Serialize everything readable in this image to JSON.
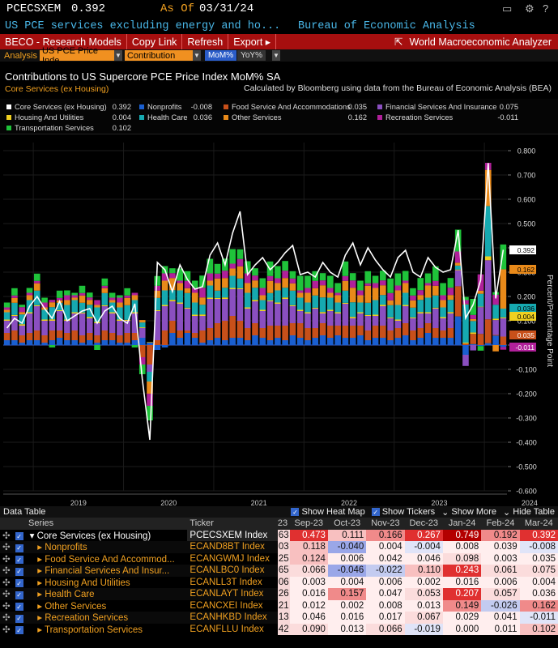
{
  "header": {
    "ticker": "PCECSXEM",
    "price": "0.392",
    "as_of_label": "As Of",
    "as_of_date": "03/31/24",
    "description": "US PCE services excluding energy and ho...",
    "source": "Bureau of Economic Analysis"
  },
  "toolbar": {
    "beco": "BECO - Research Models",
    "copy": "Copy Link",
    "refresh": "Refresh",
    "export": "Export ▸",
    "wma": "World Macroeconomic Analyzer"
  },
  "analysis": {
    "label": "Analysis",
    "security": "US PCE Price Inde",
    "mode": "Contribution",
    "mom": "MoM%",
    "yoy": "YoY%"
  },
  "chart": {
    "title": "Contributions to US Supercore PCE Price Index MoM% SA",
    "subtitle": "Core Services (ex Housing)",
    "note": "Calculated by Bloomberg using data from the Bureau of Economic Analysis (BEA)",
    "y_axis_label": "Percent/Percentage Point"
  },
  "legend": [
    {
      "name": "Core Services (ex Housing)",
      "value": "0.392",
      "color": "#ffffff"
    },
    {
      "name": "Nonprofits",
      "value": "-0.008",
      "color": "#1a5fd0"
    },
    {
      "name": "Food Service And Accommodations",
      "value": "0.035",
      "color": "#c8501a"
    },
    {
      "name": "Financial Services And Insurance",
      "value": "0.075",
      "color": "#8a4fc0"
    },
    {
      "name": "Housing And Utilities",
      "value": "0.004",
      "color": "#f0d020"
    },
    {
      "name": "Health Care",
      "value": "0.036",
      "color": "#16a9b0"
    },
    {
      "name": "Other Services",
      "value": "0.162",
      "color": "#e98a1a"
    },
    {
      "name": "Recreation Services",
      "value": "-0.011",
      "color": "#b0209a"
    },
    {
      "name": "Transportation Services",
      "value": "0.102",
      "color": "#1fc33a"
    }
  ],
  "chart_data": {
    "type": "bar",
    "stacked": true,
    "x_tick_labels": [
      "2019",
      "2020",
      "2021",
      "2022",
      "2023",
      "2024"
    ],
    "ylim": [
      -0.6,
      0.8
    ],
    "y_ticks": [
      "0.800",
      "0.700",
      "0.600",
      "0.500",
      "0.400",
      "0.300",
      "0.200",
      "0.100",
      "0.000",
      "-0.100",
      "-0.200",
      "-0.300",
      "-0.400",
      "-0.500",
      "-0.600"
    ],
    "y_tick_values": [
      0.8,
      0.7,
      0.6,
      0.5,
      0.4,
      0.3,
      0.2,
      0.1,
      0,
      -0.1,
      -0.2,
      -0.3,
      -0.4,
      -0.5,
      -0.6
    ],
    "period_start": "2018-09",
    "period_end": "2024-03",
    "series": [
      {
        "name": "Nonprofits",
        "color": "#1a5fd0",
        "values": [
          0.02,
          0.02,
          0.01,
          0.02,
          0.02,
          0.01,
          0.02,
          0.03,
          0.02,
          0.02,
          0.01,
          0.02,
          0.01,
          0.02,
          0.02,
          0.01,
          0.01,
          0.02,
          0.03,
          0.01,
          -0.02,
          -0.01,
          0.05,
          0.03,
          0.05,
          0.03,
          0.01,
          0.02,
          0.03,
          0.02,
          0.03,
          0.03,
          0.02,
          0.04,
          0.03,
          0.02,
          0.03,
          0.02,
          0.04,
          0.03,
          0.02,
          0.03,
          0.04,
          0.03,
          0.04,
          0.03,
          0.03,
          0.04,
          0.02,
          0.03,
          0.03,
          0.02,
          0.03,
          0.04,
          0.02,
          0.03,
          0.05,
          0.03,
          0.03,
          0.03,
          0.118,
          -0.04,
          0.004,
          -0.004,
          0.008,
          0.039,
          -0.008
        ]
      },
      {
        "name": "Food Service And Accommodations",
        "color": "#c8501a",
        "values": [
          0.03,
          0.04,
          0.03,
          0.03,
          0.04,
          0.03,
          0.04,
          0.03,
          0.03,
          0.04,
          0.03,
          0.03,
          0.03,
          0.04,
          0.03,
          0.03,
          0.04,
          0.03,
          -0.05,
          -0.08,
          0.02,
          0.06,
          0.05,
          0.03,
          0.01,
          0.02,
          0.05,
          0.05,
          0.06,
          0.08,
          0.09,
          0.07,
          0.05,
          0.05,
          0.04,
          0.06,
          0.05,
          0.06,
          0.05,
          0.06,
          0.05,
          0.04,
          0.05,
          0.05,
          0.04,
          0.05,
          0.05,
          0.04,
          0.04,
          0.05,
          0.05,
          0.04,
          0.04,
          0.05,
          0.04,
          0.04,
          0.04,
          0.04,
          0.03,
          0.04,
          0.124,
          0.006,
          0.042,
          0.046,
          0.098,
          0.003,
          0.035
        ]
      },
      {
        "name": "Financial Services And Insurance",
        "color": "#8a4fc0",
        "values": [
          0.05,
          0.06,
          0.04,
          0.08,
          0.1,
          0.06,
          0.04,
          0.08,
          0.05,
          0.07,
          0.09,
          0.06,
          0.05,
          0.1,
          0.08,
          0.06,
          0.05,
          0.08,
          0.04,
          -0.03,
          0.12,
          0.1,
          0.08,
          0.11,
          0.09,
          0.07,
          0.06,
          0.12,
          0.1,
          0.09,
          0.11,
          0.13,
          0.08,
          0.09,
          0.07,
          0.1,
          0.09,
          0.11,
          0.07,
          0.05,
          0.06,
          0.08,
          0.04,
          0.06,
          0.05,
          0.09,
          0.03,
          0.05,
          0.06,
          0.04,
          0.08,
          0.05,
          0.03,
          0.07,
          0.05,
          0.06,
          0.04,
          0.08,
          0.05,
          0.06,
          0.066,
          -0.046,
          -0.022,
          0.11,
          0.243,
          0.061,
          0.075
        ]
      },
      {
        "name": "Housing And Utilities",
        "color": "#f0d020",
        "values": [
          0.005,
          0.004,
          0.006,
          0.005,
          0.004,
          0.005,
          0.006,
          0.004,
          0.005,
          0.005,
          0.004,
          0.006,
          0.005,
          0.004,
          0.005,
          0.005,
          0.004,
          0.005,
          0.003,
          0.002,
          0.004,
          0.005,
          0.006,
          0.005,
          0.004,
          0.005,
          0.006,
          0.005,
          0.004,
          0.006,
          0.005,
          0.004,
          0.005,
          0.006,
          0.005,
          0.004,
          0.005,
          0.006,
          0.004,
          0.005,
          0.005,
          0.004,
          0.006,
          0.005,
          0.005,
          0.004,
          0.006,
          0.005,
          0.004,
          0.005,
          0.006,
          0.004,
          0.005,
          0.005,
          0.004,
          0.006,
          0.005,
          0.004,
          0.005,
          0.006,
          0.003,
          0.004,
          0.006,
          0.002,
          0.016,
          0.006,
          0.004
        ]
      },
      {
        "name": "Health Care",
        "color": "#16a9b0",
        "values": [
          0.03,
          0.05,
          0.04,
          0.05,
          0.06,
          0.04,
          0.05,
          0.03,
          0.06,
          0.05,
          0.04,
          0.05,
          0.06,
          0.05,
          0.04,
          0.05,
          0.06,
          0.05,
          0.02,
          -0.04,
          0.05,
          0.06,
          0.04,
          0.05,
          0.06,
          0.05,
          0.04,
          0.05,
          0.03,
          0.04,
          0.05,
          0.04,
          0.06,
          0.05,
          0.04,
          0.03,
          0.05,
          0.04,
          0.06,
          0.05,
          0.04,
          0.05,
          0.06,
          0.05,
          0.04,
          0.05,
          0.06,
          0.04,
          0.05,
          0.06,
          0.04,
          0.05,
          0.06,
          0.05,
          0.04,
          0.05,
          0.06,
          0.05,
          0.04,
          0.05,
          0.016,
          0.157,
          0.047,
          0.053,
          0.207,
          0.057,
          0.036
        ]
      },
      {
        "name": "Other Services",
        "color": "#e98a1a",
        "values": [
          0.01,
          0.02,
          0.01,
          0.02,
          0.03,
          0.01,
          0.02,
          0.01,
          0.02,
          0.01,
          0.03,
          0.02,
          0.01,
          0.02,
          0.01,
          0.02,
          0.03,
          0.02,
          0.01,
          -0.05,
          0.03,
          0.04,
          0.05,
          0.03,
          0.02,
          0.04,
          0.03,
          0.02,
          0.05,
          0.04,
          0.03,
          0.05,
          0.04,
          0.03,
          0.02,
          0.05,
          0.03,
          0.04,
          0.03,
          0.02,
          0.04,
          0.03,
          0.05,
          0.02,
          0.03,
          0.04,
          0.06,
          0.03,
          0.07,
          0.05,
          0.04,
          0.02,
          0.06,
          0.04,
          0.03,
          0.02,
          0.05,
          0.04,
          0.03,
          0.02,
          0.012,
          0.002,
          0.008,
          0.013,
          0.149,
          -0.026,
          0.162
        ]
      },
      {
        "name": "Recreation Services",
        "color": "#b0209a",
        "values": [
          0.01,
          0.01,
          0.02,
          0.01,
          0.01,
          0.02,
          0.01,
          0.01,
          0.02,
          0.01,
          0.01,
          0.01,
          0.02,
          0.01,
          0.01,
          0.02,
          0.01,
          0.01,
          -0.03,
          -0.05,
          0.02,
          0.03,
          0.02,
          0.01,
          0.03,
          0.02,
          0.04,
          0.03,
          0.02,
          0.03,
          0.02,
          0.03,
          0.04,
          0.02,
          0.03,
          0.02,
          0.02,
          0.03,
          0.02,
          0.01,
          0.02,
          0.03,
          0.02,
          0.02,
          0.01,
          0.02,
          0.03,
          0.02,
          0.01,
          0.02,
          0.02,
          0.03,
          0.02,
          0.01,
          0.02,
          0.02,
          0.01,
          0.02,
          0.02,
          0.03,
          0.046,
          0.016,
          0.017,
          0.067,
          0.029,
          0.041,
          -0.011
        ]
      },
      {
        "name": "Transportation Services",
        "color": "#1fc33a",
        "values": [
          0.02,
          0.03,
          0.01,
          0.02,
          0.03,
          0.02,
          -0.01,
          0.03,
          0.02,
          0.01,
          0.03,
          0.02,
          -0.02,
          0.03,
          0.02,
          0.01,
          0.03,
          -0.01,
          -0.04,
          -0.06,
          0.04,
          0.03,
          0.02,
          0.05,
          0.04,
          0.03,
          0.05,
          0.06,
          0.04,
          0.05,
          0.06,
          0.04,
          0.05,
          0.03,
          0.04,
          0.06,
          0.05,
          0.04,
          0.03,
          0.06,
          0.05,
          0.04,
          0.03,
          0.05,
          0.04,
          0.06,
          0.03,
          0.04,
          0.05,
          0.03,
          0.04,
          0.06,
          0.05,
          0.04,
          0.03,
          0.05,
          0.04,
          0.06,
          0.05,
          0.04,
          0.09,
          0.013,
          0.066,
          -0.019,
          0.0,
          0.011,
          0.102
        ]
      }
    ],
    "total": {
      "name": "Core Services (ex Housing)",
      "values": [
        0.07,
        0.11,
        0.09,
        0.16,
        0.2,
        0.15,
        0.11,
        0.18,
        0.1,
        0.12,
        0.14,
        0.15,
        0.09,
        0.14,
        0.16,
        0.11,
        0.09,
        0.17,
        -0.14,
        -0.39,
        0.34,
        0.31,
        0.22,
        0.33,
        0.27,
        0.23,
        0.24,
        0.37,
        0.42,
        0.33,
        0.46,
        0.55,
        0.29,
        0.33,
        0.36,
        0.31,
        0.34,
        0.38,
        0.41,
        0.29,
        0.3,
        0.28,
        0.34,
        0.3,
        0.28,
        0.37,
        0.42,
        0.33,
        0.4,
        0.35,
        0.31,
        0.28,
        0.36,
        0.39,
        0.3,
        0.28,
        0.36,
        0.32,
        0.3,
        0.31,
        0.473,
        0.111,
        0.166,
        0.267,
        0.749,
        0.192,
        0.392
      ]
    }
  },
  "data_table": {
    "title": "Data Table",
    "opts": [
      "Show Heat Map",
      "Show Tickers",
      "Show More",
      "Hide Table"
    ],
    "columns": [
      "Series",
      "Ticker",
      "23",
      "Sep-23",
      "Oct-23",
      "Nov-23",
      "Dec-23",
      "Jan-24",
      "Feb-24",
      "Mar-24"
    ],
    "rows": [
      {
        "name": "Core Services (ex Housing)",
        "ticker": "PCECSXEM Index",
        "prev": "63",
        "vals": [
          "0.473",
          "0.111",
          "0.166",
          "0.267",
          "0.749",
          "0.192",
          "0.392"
        ]
      },
      {
        "name": "Nonprofits",
        "ticker": "ECAND8BT Index",
        "prev": "03",
        "vals": [
          "0.118",
          "-0.040",
          "0.004",
          "-0.004",
          "0.008",
          "0.039",
          "-0.008"
        ]
      },
      {
        "name": "Food Service And Accommod...",
        "ticker": "ECANGWMJ Index",
        "prev": "25",
        "vals": [
          "0.124",
          "0.006",
          "0.042",
          "0.046",
          "0.098",
          "0.003",
          "0.035"
        ]
      },
      {
        "name": "Financial Services And Insur...",
        "ticker": "ECANLBC0 Index",
        "prev": "65",
        "vals": [
          "0.066",
          "-0.046",
          "-0.022",
          "0.110",
          "0.243",
          "0.061",
          "0.075"
        ]
      },
      {
        "name": "Housing And Utilities",
        "ticker": "ECANLL3T Index",
        "prev": "06",
        "vals": [
          "0.003",
          "0.004",
          "0.006",
          "0.002",
          "0.016",
          "0.006",
          "0.004"
        ]
      },
      {
        "name": "Health Care",
        "ticker": "ECANLAYT Index",
        "prev": "26",
        "vals": [
          "0.016",
          "0.157",
          "0.047",
          "0.053",
          "0.207",
          "0.057",
          "0.036"
        ]
      },
      {
        "name": "Other Services",
        "ticker": "ECANCXEI Index",
        "prev": "21",
        "vals": [
          "0.012",
          "0.002",
          "0.008",
          "0.013",
          "0.149",
          "-0.026",
          "0.162"
        ]
      },
      {
        "name": "Recreation Services",
        "ticker": "ECANHKBD Index",
        "prev": "13",
        "vals": [
          "0.046",
          "0.016",
          "0.017",
          "0.067",
          "0.029",
          "0.041",
          "-0.011"
        ]
      },
      {
        "name": "Transportation Services",
        "ticker": "ECANFLLU Index",
        "prev": "42",
        "vals": [
          "0.090",
          "0.013",
          "0.066",
          "-0.019",
          "0.000",
          "0.011",
          "0.102"
        ]
      }
    ]
  }
}
